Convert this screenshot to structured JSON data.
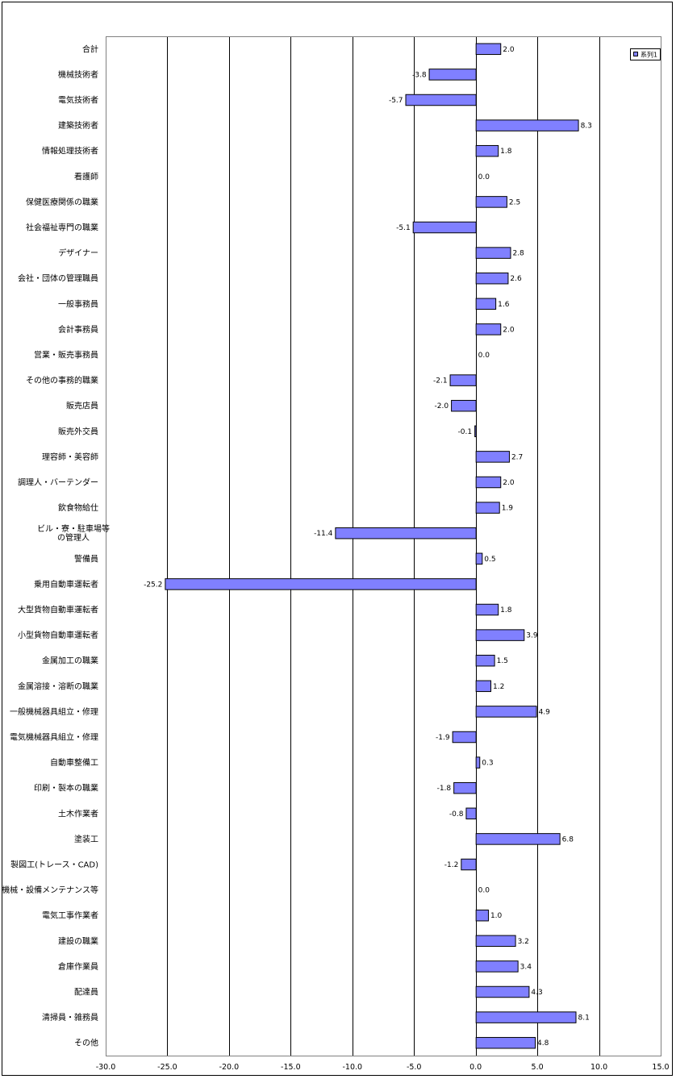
{
  "chart_data": {
    "type": "bar",
    "orientation": "horizontal",
    "title": "",
    "xlabel": "",
    "ylabel": "",
    "xlim": [
      -30.0,
      15.0
    ],
    "x_ticks": [
      -30.0,
      -25.0,
      -20.0,
      -15.0,
      -10.0,
      -5.0,
      0.0,
      5.0,
      10.0,
      15.0
    ],
    "tick_labels": [
      "-30.0",
      "-25.0",
      "-20.0",
      "-15.0",
      "-10.0",
      "-5.0",
      "0.0",
      "5.0",
      "10.0",
      "15.0"
    ],
    "grid": "vertical gridlines at each tick",
    "legend_position": "top-right",
    "bar_color": "#8080ff",
    "categories": [
      "合計",
      "機械技術者",
      "電気技術者",
      "建築技術者",
      "情報処理技術者",
      "看護師",
      "保健医療関係の職業",
      "社会福祉専門の職業",
      "デザイナー",
      "会社・団体の管理職員",
      "一般事務員",
      "会計事務員",
      "営業・販売事務員",
      "その他の事務的職業",
      "販売店員",
      "販売外交員",
      "理容師・美容師",
      "調理人・バーテンダー",
      "飲食物給仕",
      "ビル・寮・駐車場等\nの管理人",
      "警備員",
      "乗用自動車運転者",
      "大型貨物自動車運転者",
      "小型貨物自動車運転者",
      "金属加工の職業",
      "金属溶接・溶断の職業",
      "一般機械器具組立・修理",
      "電気機械器具組立・修理",
      "自動車整備工",
      "印刷・製本の職業",
      "土木作業者",
      "塗装工",
      "製図工(トレース・CAD)",
      "機械・設備メンテナンス等",
      "電気工事作業者",
      "建設の職業",
      "倉庫作業員",
      "配達員",
      "清掃員・雑務員",
      "その他"
    ],
    "series": [
      {
        "name": "系列1",
        "values": [
          2.0,
          -3.8,
          -5.7,
          8.3,
          1.8,
          0.0,
          2.5,
          -5.1,
          2.8,
          2.6,
          1.6,
          2.0,
          0.0,
          -2.1,
          -2.0,
          -0.1,
          2.7,
          2.0,
          1.9,
          -11.4,
          0.5,
          -25.2,
          1.8,
          3.9,
          1.5,
          1.2,
          4.9,
          -1.9,
          0.3,
          -1.8,
          -0.8,
          6.8,
          -1.2,
          0.0,
          1.0,
          3.2,
          3.4,
          4.3,
          8.1,
          4.8
        ],
        "data_labels": [
          "2.0",
          "-3.8",
          "-5.7",
          "8.3",
          "1.8",
          "0.0",
          "2.5",
          "-5.1",
          "2.8",
          "2.6",
          "1.6",
          "2.0",
          "0.0",
          "-2.1",
          "-2.0",
          "-0.1",
          "2.7",
          "2.0",
          "1.9",
          "-11.4",
          "0.5",
          "-25.2",
          "1.8",
          "3.9",
          "1.5",
          "1.2",
          "4.9",
          "-1.9",
          "0.3",
          "-1.8",
          "-0.8",
          "6.8",
          "-1.2",
          "0.0",
          "1.0",
          "3.2",
          "3.4",
          "4.3",
          "8.1",
          "4.8"
        ]
      }
    ]
  }
}
